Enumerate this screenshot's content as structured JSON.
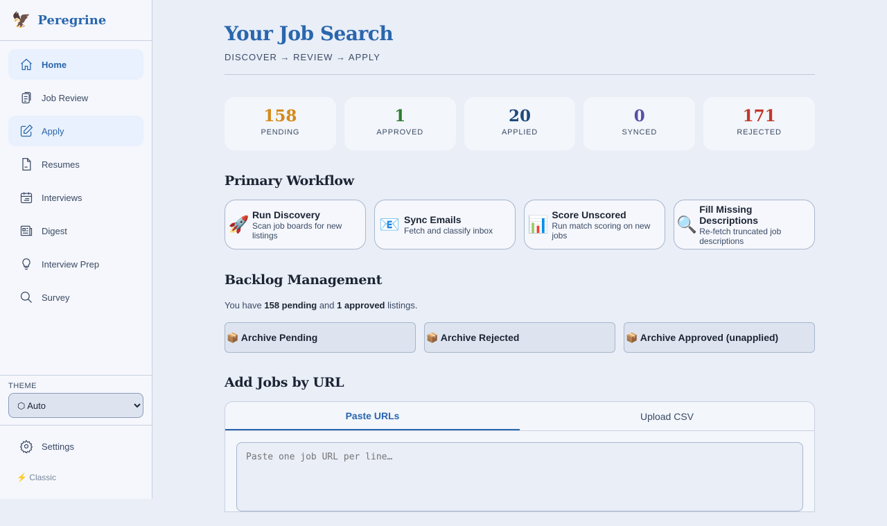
{
  "app": {
    "name": "Peregrine",
    "logo_emoji": "🦅"
  },
  "sidebar": {
    "items": [
      {
        "label": "Home",
        "icon": "home-icon"
      },
      {
        "label": "Job Review",
        "icon": "clipboard-icon"
      },
      {
        "label": "Apply",
        "icon": "pencil-icon"
      },
      {
        "label": "Resumes",
        "icon": "document-icon"
      },
      {
        "label": "Interviews",
        "icon": "calendar-icon"
      },
      {
        "label": "Digest",
        "icon": "newspaper-icon"
      },
      {
        "label": "Interview Prep",
        "icon": "lightbulb-icon"
      },
      {
        "label": "Survey",
        "icon": "search-icon"
      }
    ],
    "theme_label": "THEME",
    "theme_value": "⬡ Auto",
    "settings": "Settings",
    "classic": "⚡ Classic"
  },
  "header": {
    "title": "Your Job Search",
    "subtitle": "DISCOVER → REVIEW → APPLY"
  },
  "stats": [
    {
      "value": "158",
      "label": "PENDING",
      "color": "#d4891a"
    },
    {
      "value": "1",
      "label": "APPROVED",
      "color": "#2e7d32"
    },
    {
      "value": "20",
      "label": "APPLIED",
      "color": "#1e4a7a"
    },
    {
      "value": "0",
      "label": "SYNCED",
      "color": "#5b4ea8"
    },
    {
      "value": "171",
      "label": "REJECTED",
      "color": "#c0392b"
    }
  ],
  "workflow": {
    "title": "Primary Workflow",
    "cards": [
      {
        "icon": "🚀",
        "title": "Run Discovery",
        "desc": "Scan job boards for new listings"
      },
      {
        "icon": "📧",
        "title": "Sync Emails",
        "desc": "Fetch and classify inbox"
      },
      {
        "icon": "📊",
        "title": "Score Unscored",
        "desc": "Run match scoring on new jobs"
      },
      {
        "icon": "🔍",
        "title": "Fill Missing Descriptions",
        "desc": "Re-fetch truncated job descriptions"
      }
    ]
  },
  "backlog": {
    "title": "Backlog Management",
    "note_pre": "You have ",
    "pending": "158 pending",
    "note_mid": " and ",
    "approved": "1 approved",
    "note_post": " listings.",
    "buttons": [
      "📦 Archive Pending",
      "📦 Archive Rejected",
      "📦 Archive Approved (unapplied)"
    ]
  },
  "add_jobs": {
    "title": "Add Jobs by URL",
    "tabs": [
      "Paste URLs",
      "Upload CSV"
    ],
    "placeholder": "Paste one job URL per line…"
  }
}
